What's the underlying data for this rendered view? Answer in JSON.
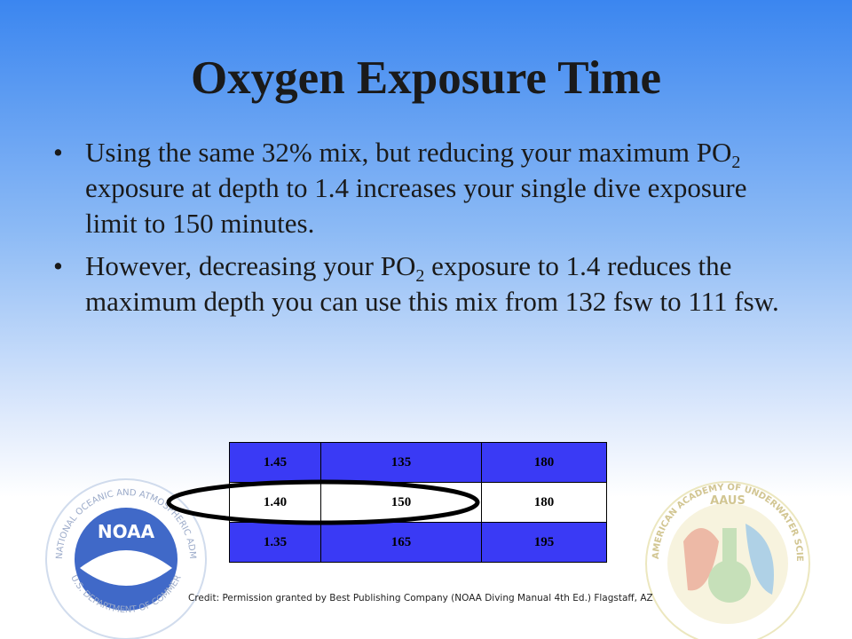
{
  "title": "Oxygen Exposure Time",
  "bullets": [
    {
      "before": "Using the same 32% mix, but reducing your maximum PO",
      "sub": "2",
      "after": " exposure at depth to 1.4 increases your single dive exposure limit to 150 minutes."
    },
    {
      "before": "However, decreasing your PO",
      "sub": "2",
      "after": " exposure to 1.4 reduces the maximum depth you can use this mix from 132 fsw to 111 fsw."
    }
  ],
  "table": {
    "rows": [
      [
        "1.45",
        "135",
        "180"
      ],
      [
        "1.40",
        "150",
        "180"
      ],
      [
        "1.35",
        "165",
        "195"
      ]
    ]
  },
  "credit": "Credit: Permission granted by Best Publishing Company (NOAA Diving Manual 4th Ed.) Flagstaff, AZ",
  "noaa_logo": {
    "name": "NOAA",
    "ring_top": "NATIONAL OCEANIC AND ATMOSPHERIC ADMINISTRATION",
    "ring_bottom": "U.S. DEPARTMENT OF COMMERCE"
  },
  "aaus_logo": {
    "name": "AAUS",
    "ring": "AMERICAN ACADEMY OF UNDERWATER SCIENCES"
  }
}
